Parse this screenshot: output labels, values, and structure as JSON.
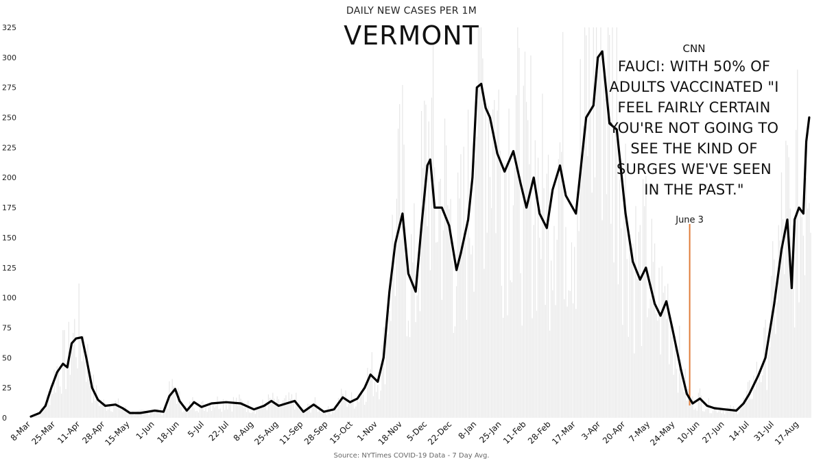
{
  "header": {
    "subtitle": "DAILY NEW CASES PER 1M",
    "title": "VERMONT"
  },
  "annotation": {
    "source": "CNN",
    "quote": "FAUCI: WITH 50% OF ADULTS VACCINATED \"I FEEL FAIRLY CERTAIN YOU'RE NOT GOING TO SEE THE KIND OF SURGES WE'VE SEEN IN THE PAST.\"",
    "marker_label": "June 3",
    "marker_date": "3-Jun-2021",
    "marker_color": "#e07b39"
  },
  "footer": {
    "source": "Source: NYTimes COVID-19 Data - 7 Day Avg."
  },
  "colors": {
    "line": "#000000",
    "bars": "#e6e6e6",
    "marker": "#e07b39"
  },
  "chart_data": {
    "type": "line",
    "title": "DAILY NEW CASES PER 1M",
    "ylim": [
      0,
      325
    ],
    "yticks": [
      "0",
      "25",
      "50",
      "75",
      "100",
      "125",
      "150",
      "175",
      "200",
      "225",
      "250",
      "275",
      "300",
      "325"
    ],
    "xticks": [
      "8-Mar",
      "25-Mar",
      "11-Apr",
      "28-Apr",
      "15-May",
      "1-Jun",
      "18-Jun",
      "5-Jul",
      "22-Jul",
      "8-Aug",
      "25-Aug",
      "11-Sep",
      "28-Sep",
      "15-Oct",
      "1-Nov",
      "18-Nov",
      "5-Dec",
      "22-Dec",
      "8-Jan",
      "25-Jan",
      "11-Feb",
      "28-Feb",
      "17-Mar",
      "3-Apr",
      "20-Apr",
      "7-May",
      "24-May",
      "10-Jun",
      "27-Jun",
      "14-Jul",
      "31-Jul",
      "17-Aug"
    ],
    "x_start": "8-Mar-2020",
    "x_end": "25-Aug-2021",
    "grid": false,
    "legend": "none",
    "series": [
      {
        "values": [
          [
            "8-Mar-2020",
            1
          ],
          [
            "14-Mar-2020",
            4
          ],
          [
            "18-Mar-2020",
            10
          ],
          [
            "22-Mar-2020",
            25
          ],
          [
            "26-Mar-2020",
            38
          ],
          [
            "30-Mar-2020",
            45
          ],
          [
            "2-Apr-2020",
            42
          ],
          [
            "5-Apr-2020",
            62
          ],
          [
            "8-Apr-2020",
            66
          ],
          [
            "12-Apr-2020",
            67
          ],
          [
            "15-Apr-2020",
            50
          ],
          [
            "19-Apr-2020",
            25
          ],
          [
            "23-Apr-2020",
            15
          ],
          [
            "28-Apr-2020",
            10
          ],
          [
            "5-May-2020",
            11
          ],
          [
            "10-May-2020",
            8
          ],
          [
            "15-May-2020",
            4
          ],
          [
            "22-May-2020",
            4
          ],
          [
            "1-Jun-2020",
            6
          ],
          [
            "7-Jun-2020",
            5
          ],
          [
            "11-Jun-2020",
            18
          ],
          [
            "15-Jun-2020",
            24
          ],
          [
            "18-Jun-2020",
            14
          ],
          [
            "23-Jun-2020",
            6
          ],
          [
            "28-Jun-2020",
            13
          ],
          [
            "3-Jul-2020",
            9
          ],
          [
            "10-Jul-2020",
            12
          ],
          [
            "20-Jul-2020",
            13
          ],
          [
            "30-Jul-2020",
            12
          ],
          [
            "8-Aug-2020",
            7
          ],
          [
            "15-Aug-2020",
            10
          ],
          [
            "20-Aug-2020",
            14
          ],
          [
            "25-Aug-2020",
            10
          ],
          [
            "5-Sep-2020",
            14
          ],
          [
            "11-Sep-2020",
            5
          ],
          [
            "18-Sep-2020",
            11
          ],
          [
            "25-Sep-2020",
            5
          ],
          [
            "2-Oct-2020",
            7
          ],
          [
            "8-Oct-2020",
            17
          ],
          [
            "13-Oct-2020",
            13
          ],
          [
            "18-Oct-2020",
            16
          ],
          [
            "23-Oct-2020",
            25
          ],
          [
            "27-Oct-2020",
            36
          ],
          [
            "1-Nov-2020",
            30
          ],
          [
            "5-Nov-2020",
            50
          ],
          [
            "9-Nov-2020",
            105
          ],
          [
            "13-Nov-2020",
            145
          ],
          [
            "18-Nov-2020",
            170
          ],
          [
            "22-Nov-2020",
            120
          ],
          [
            "27-Nov-2020",
            105
          ],
          [
            "1-Dec-2020",
            160
          ],
          [
            "5-Dec-2020",
            210
          ],
          [
            "7-Dec-2020",
            215
          ],
          [
            "10-Dec-2020",
            175
          ],
          [
            "15-Dec-2020",
            175
          ],
          [
            "20-Dec-2020",
            160
          ],
          [
            "25-Dec-2020",
            123
          ],
          [
            "28-Dec-2020",
            137
          ],
          [
            "2-Jan-2021",
            165
          ],
          [
            "5-Jan-2021",
            200
          ],
          [
            "8-Jan-2021",
            275
          ],
          [
            "11-Jan-2021",
            278
          ],
          [
            "14-Jan-2021",
            258
          ],
          [
            "17-Jan-2021",
            250
          ],
          [
            "22-Jan-2021",
            220
          ],
          [
            "27-Jan-2021",
            205
          ],
          [
            "2-Feb-2021",
            222
          ],
          [
            "7-Feb-2021",
            195
          ],
          [
            "11-Feb-2021",
            175
          ],
          [
            "16-Feb-2021",
            200
          ],
          [
            "20-Feb-2021",
            170
          ],
          [
            "25-Feb-2021",
            158
          ],
          [
            "1-Mar-2021",
            190
          ],
          [
            "6-Mar-2021",
            210
          ],
          [
            "10-Mar-2021",
            185
          ],
          [
            "17-Mar-2021",
            170
          ],
          [
            "24-Mar-2021",
            250
          ],
          [
            "29-Mar-2021",
            260
          ],
          [
            "1-Apr-2021",
            300
          ],
          [
            "4-Apr-2021",
            305
          ],
          [
            "9-Apr-2021",
            245
          ],
          [
            "14-Apr-2021",
            240
          ],
          [
            "20-Apr-2021",
            170
          ],
          [
            "25-Apr-2021",
            130
          ],
          [
            "30-Apr-2021",
            115
          ],
          [
            "4-May-2021",
            125
          ],
          [
            "10-May-2021",
            95
          ],
          [
            "14-May-2021",
            85
          ],
          [
            "18-May-2021",
            97
          ],
          [
            "22-May-2021",
            75
          ],
          [
            "28-May-2021",
            40
          ],
          [
            "1-Jun-2021",
            20
          ],
          [
            "5-Jun-2021",
            12
          ],
          [
            "10-Jun-2021",
            16
          ],
          [
            "15-Jun-2021",
            10
          ],
          [
            "20-Jun-2021",
            8
          ],
          [
            "27-Jun-2021",
            7
          ],
          [
            "5-Jul-2021",
            6
          ],
          [
            "10-Jul-2021",
            12
          ],
          [
            "14-Jul-2021",
            20
          ],
          [
            "20-Jul-2021",
            35
          ],
          [
            "25-Jul-2021",
            50
          ],
          [
            "31-Jul-2021",
            95
          ],
          [
            "5-Aug-2021",
            140
          ],
          [
            "9-Aug-2021",
            165
          ],
          [
            "12-Aug-2021",
            108
          ],
          [
            "14-Aug-2021",
            165
          ],
          [
            "17-Aug-2021",
            175
          ],
          [
            "20-Aug-2021",
            170
          ],
          [
            "22-Aug-2021",
            230
          ],
          [
            "24-Aug-2021",
            250
          ]
        ]
      }
    ]
  }
}
